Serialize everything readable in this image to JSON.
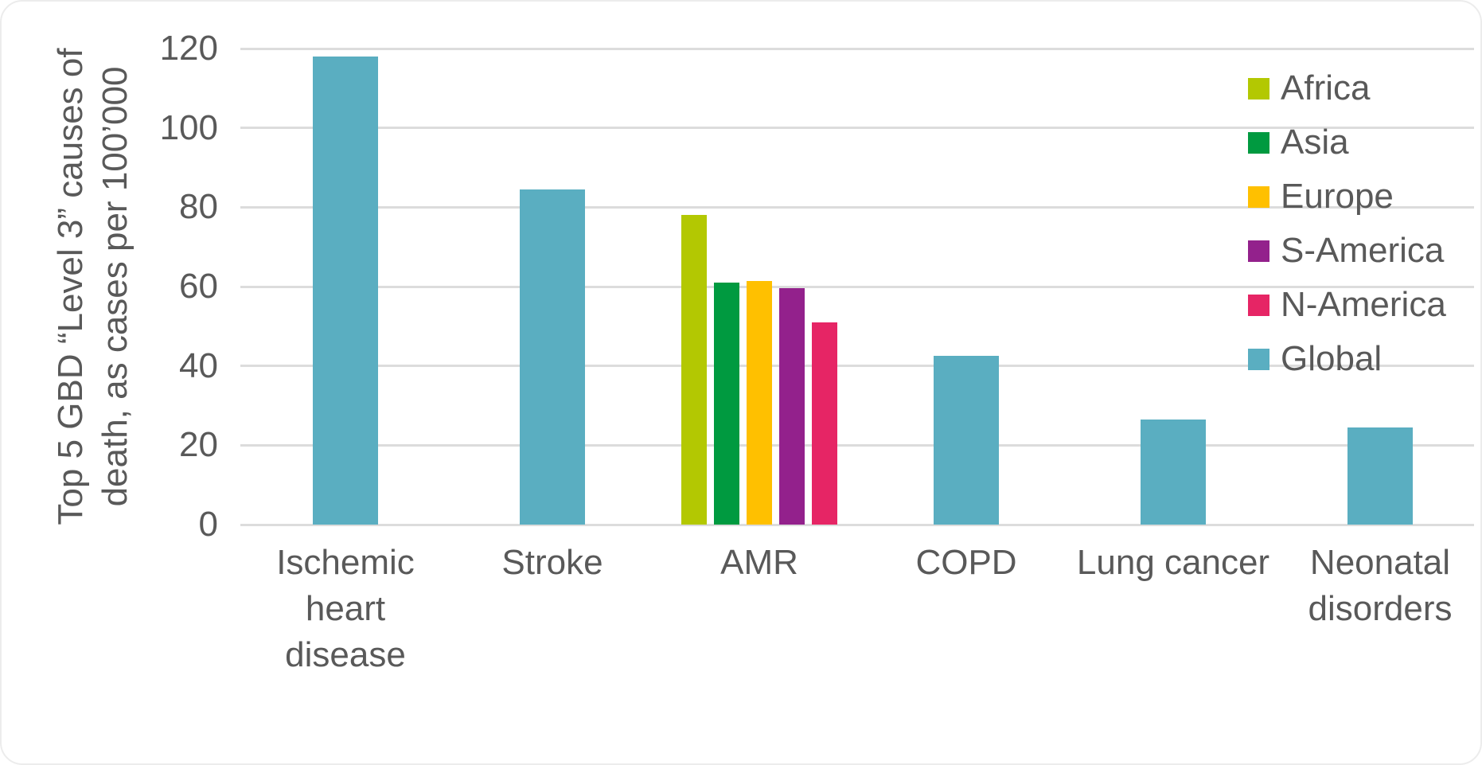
{
  "chart_data": {
    "type": "bar",
    "title": "",
    "ylabel": "Top 5 GBD “Level 3” causes of death, as cases per 100’000",
    "ylabel_lines": [
      "Top 5 GBD “Level 3” causes of",
      "death, as cases per 100’000"
    ],
    "xlabel": "",
    "ylim": [
      0,
      120
    ],
    "y_ticks": [
      120,
      100,
      80,
      60,
      40,
      20,
      0
    ],
    "grid": "horizontal",
    "legend_position": "top-right",
    "categories": [
      "Ischemic\nheart\ndisease",
      "Stroke",
      "AMR",
      "COPD",
      "Lung cancer",
      "Neonatal\ndisorders"
    ],
    "legend": [
      {
        "label": "Africa",
        "color": "#b3c802"
      },
      {
        "label": "Asia",
        "color": "#009a40"
      },
      {
        "label": "Europe",
        "color": "#ffc000"
      },
      {
        "label": "S-America",
        "color": "#93218c"
      },
      {
        "label": "N-America",
        "color": "#e62565"
      },
      {
        "label": "Global",
        "color": "#5aaec1"
      }
    ],
    "bars": [
      {
        "category_index": 0,
        "category": "Ischemic heart disease",
        "series": "Global",
        "value": 118
      },
      {
        "category_index": 1,
        "category": "Stroke",
        "series": "Global",
        "value": 84.5
      },
      {
        "category_index": 2,
        "category": "AMR",
        "series": "Africa",
        "value": 78
      },
      {
        "category_index": 2,
        "category": "AMR",
        "series": "Asia",
        "value": 61
      },
      {
        "category_index": 2,
        "category": "AMR",
        "series": "Europe",
        "value": 61.5
      },
      {
        "category_index": 2,
        "category": "AMR",
        "series": "S-America",
        "value": 59.5
      },
      {
        "category_index": 2,
        "category": "AMR",
        "series": "N-America",
        "value": 51
      },
      {
        "category_index": 3,
        "category": "COPD",
        "series": "Global",
        "value": 42.5
      },
      {
        "category_index": 4,
        "category": "Lung cancer",
        "series": "Global",
        "value": 26.5
      },
      {
        "category_index": 5,
        "category": "Neonatal disorders",
        "series": "Global",
        "value": 24.5
      }
    ],
    "text_color": "#595959",
    "gridline_color": "#dcdcdc"
  }
}
